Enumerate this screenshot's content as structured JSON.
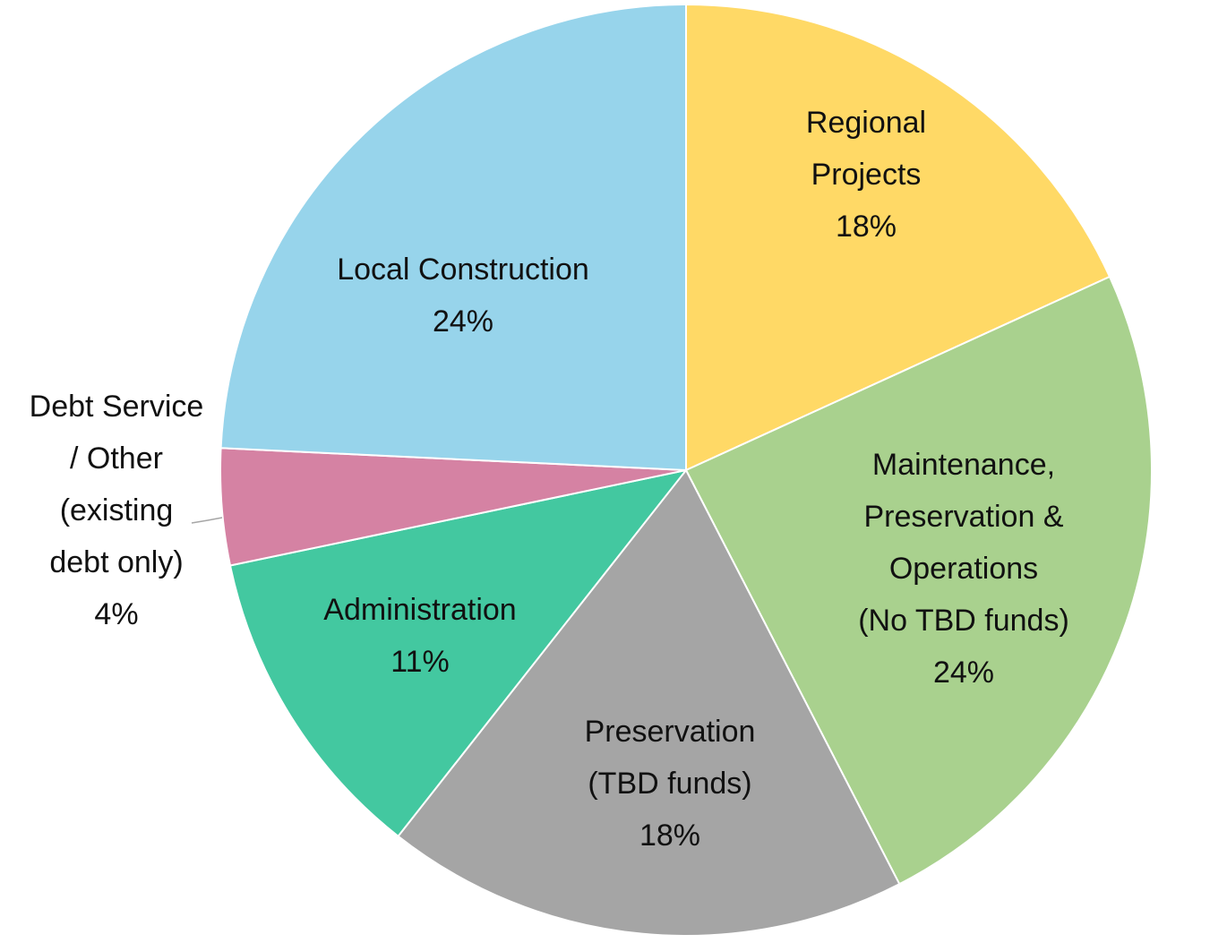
{
  "chart_data": {
    "type": "pie",
    "categories": [
      "Regional\nProjects",
      "Maintenance, Preservation &\nOperations\n(No TBD funds)",
      "Preservation\n(TBD funds)",
      "Administration",
      "Debt Service\n/ Other\n(existing\ndebt only)",
      "Local Construction"
    ],
    "values": [
      18,
      24,
      18,
      11,
      4,
      24
    ],
    "value_labels": [
      "18%",
      "24%",
      "18%",
      "11%",
      "4%",
      "24%"
    ],
    "colors": [
      "#FFD966",
      "#A9D18E",
      "#A5A5A5",
      "#43C8A0",
      "#D582A3",
      "#97D4EB"
    ]
  }
}
